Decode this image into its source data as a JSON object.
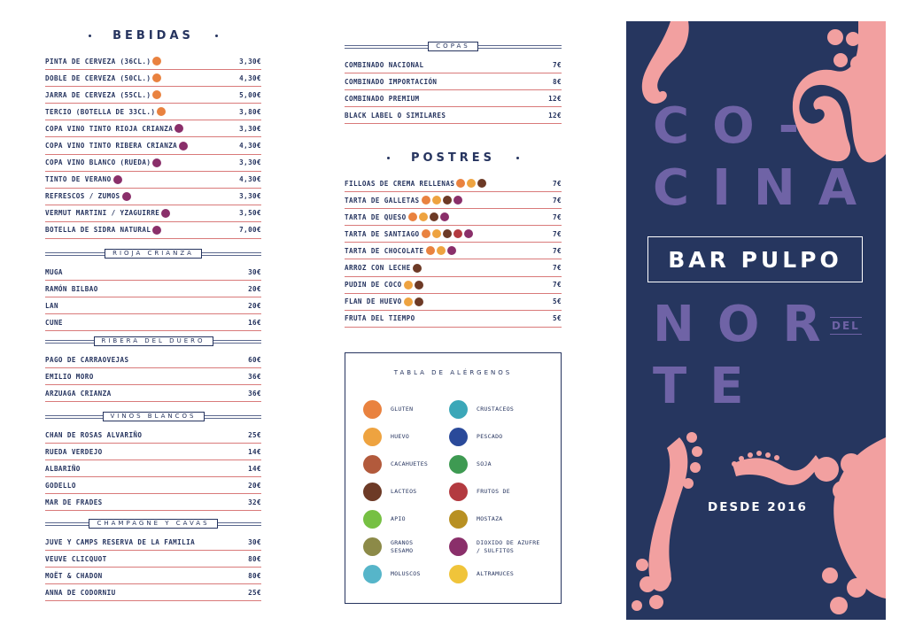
{
  "bebidas": {
    "title": "BEBIDAS",
    "items": [
      {
        "name": "PINTA DE CERVEZA (36CL.)",
        "icons": [
          "gluten"
        ],
        "price": "3,30€"
      },
      {
        "name": "DOBLE DE CERVEZA (50CL.)",
        "icons": [
          "gluten"
        ],
        "price": "4,30€"
      },
      {
        "name": "JARRA DE CERVEZA (55CL.)",
        "icons": [
          "gluten"
        ],
        "price": "5,00€"
      },
      {
        "name": "TERCIO (BOTELLA DE 33CL.)",
        "icons": [
          "gluten"
        ],
        "price": "3,80€"
      },
      {
        "name": "COPA VINO TINTO RIOJA CRIANZA",
        "icons": [
          "sulfitos"
        ],
        "price": "3,30€"
      },
      {
        "name": "COPA VINO TINTO RIBERA CRIANZA",
        "icons": [
          "sulfitos"
        ],
        "price": "4,30€"
      },
      {
        "name": "COPA VINO BLANCO (RUEDA)",
        "icons": [
          "sulfitos"
        ],
        "price": "3,30€"
      },
      {
        "name": "TINTO DE VERANO",
        "icons": [
          "sulfitos"
        ],
        "price": "4,30€"
      },
      {
        "name": "REFRESCOS / ZUMOS",
        "icons": [
          "sulfitos"
        ],
        "price": "3,30€"
      },
      {
        "name": "VERMUT MARTINI / YZAGUIRRE",
        "icons": [
          "sulfitos"
        ],
        "price": "3,50€"
      },
      {
        "name": "BOTELLA DE SIDRA NATURAL",
        "icons": [
          "sulfitos"
        ],
        "price": "7,00€"
      }
    ]
  },
  "rioja": {
    "title": "RIOJA CRIANZA",
    "items": [
      {
        "name": "MUGA",
        "icons": [],
        "price": "30€"
      },
      {
        "name": "RAMÓN BILBAO",
        "icons": [],
        "price": "20€"
      },
      {
        "name": "LAN",
        "icons": [],
        "price": "20€"
      },
      {
        "name": "CUNE",
        "icons": [],
        "price": "16€"
      }
    ]
  },
  "ribera": {
    "title": "RIBERA DEL DUERO",
    "items": [
      {
        "name": "PAGO DE CARRAOVEJAS",
        "icons": [],
        "price": "60€"
      },
      {
        "name": "EMILIO MORO",
        "icons": [],
        "price": "36€"
      },
      {
        "name": "ARZUAGA CRIANZA",
        "icons": [],
        "price": "36€"
      }
    ]
  },
  "blancos": {
    "title": "VINOS BLANCOS",
    "items": [
      {
        "name": "CHAN DE ROSAS ALVARIÑO",
        "icons": [],
        "price": "25€"
      },
      {
        "name": "RUEDA VERDEJO",
        "icons": [],
        "price": "14€"
      },
      {
        "name": "ALBARIÑO",
        "icons": [],
        "price": "14€"
      },
      {
        "name": "GODELLO",
        "icons": [],
        "price": "20€"
      },
      {
        "name": "MAR DE FRADES",
        "icons": [],
        "price": "32€"
      }
    ]
  },
  "cavas": {
    "title": "CHAMPAGNE Y CAVAS",
    "items": [
      {
        "name": "JUVE Y CAMPS RESERVA DE LA FAMILIA",
        "icons": [],
        "price": "30€"
      },
      {
        "name": "VEUVE CLICQUOT",
        "icons": [],
        "price": "80€"
      },
      {
        "name": "MOËT & CHADON",
        "icons": [],
        "price": "80€"
      },
      {
        "name": "ANNA DE CODORNIU",
        "icons": [],
        "price": "25€"
      }
    ]
  },
  "copas": {
    "title": "COPAS",
    "items": [
      {
        "name": "COMBINADO NACIONAL",
        "icons": [],
        "price": "7€"
      },
      {
        "name": "COMBINADO IMPORTACIÓN",
        "icons": [],
        "price": "8€"
      },
      {
        "name": "COMBINADO PREMIUM",
        "icons": [],
        "price": "12€"
      },
      {
        "name": "BLACK LABEL O SIMILARES",
        "icons": [],
        "price": "12€"
      }
    ]
  },
  "postres": {
    "title": "POSTRES",
    "items": [
      {
        "name": "FILLOAS DE CREMA RELLENAS",
        "icons": [
          "gluten",
          "huevo",
          "lacteos"
        ],
        "price": "7€"
      },
      {
        "name": "TARTA DE GALLETAS",
        "icons": [
          "gluten",
          "huevo",
          "lacteos",
          "sulfitos"
        ],
        "price": "7€"
      },
      {
        "name": "TARTA DE QUESO",
        "icons": [
          "gluten",
          "huevo",
          "lacteos",
          "sulfitos"
        ],
        "price": "7€"
      },
      {
        "name": "TARTA DE SANTIAGO",
        "icons": [
          "gluten",
          "huevo",
          "lacteos",
          "frutos",
          "sulfitos"
        ],
        "price": "7€"
      },
      {
        "name": "TARTA DE CHOCOLATE",
        "icons": [
          "gluten",
          "huevo",
          "sulfitos"
        ],
        "price": "7€"
      },
      {
        "name": "ARROZ CON LECHE",
        "icons": [
          "lacteos"
        ],
        "price": "7€"
      },
      {
        "name": "PUDIN DE COCO",
        "icons": [
          "huevo",
          "lacteos"
        ],
        "price": "7€"
      },
      {
        "name": "FLAN DE HUEVO",
        "icons": [
          "huevo",
          "lacteos"
        ],
        "price": "5€"
      },
      {
        "name": "FRUTA DEL TIEMPO",
        "icons": [],
        "price": "5€"
      }
    ]
  },
  "alergenos": {
    "title": "TABLA DE ALÉRGENOS",
    "items": [
      {
        "label": "GLUTEN",
        "color": "#e9823f",
        "icon": "wheat-icon"
      },
      {
        "label": "CRUSTACEOS",
        "color": "#3ba7b8",
        "icon": "crab-icon"
      },
      {
        "label": "HUEVO",
        "color": "#eea340",
        "icon": "egg-icon"
      },
      {
        "label": "PESCADO",
        "color": "#2a4a9a",
        "icon": "fish-icon"
      },
      {
        "label": "CACAHUETES",
        "color": "#b25a3c",
        "icon": "peanut-icon"
      },
      {
        "label": "SOJA",
        "color": "#3e9a52",
        "icon": "soy-icon"
      },
      {
        "label": "LACTEOS",
        "color": "#6d3a26",
        "icon": "milk-icon"
      },
      {
        "label": "FRUTOS DE",
        "color": "#b33a40",
        "icon": "nut-icon"
      },
      {
        "label": "APIO",
        "color": "#76c043",
        "icon": "celery-icon"
      },
      {
        "label": "MOSTAZA",
        "color": "#b89022",
        "icon": "mustard-icon"
      },
      {
        "label": "GRANOS\nSESAMO",
        "color": "#8c8a48",
        "icon": "sesame-icon"
      },
      {
        "label": "DIOXIDO DE AZUFRE\n/ SULFITOS",
        "color": "#8a2f6a",
        "icon": "sulfite-icon"
      },
      {
        "label": "MOLUSCOS",
        "color": "#56b5c9",
        "icon": "shell-icon"
      },
      {
        "label": "ALTRAMUCES",
        "color": "#f0c43a",
        "icon": "lupin-icon"
      }
    ]
  },
  "cover": {
    "letters": [
      "CO-",
      "CINA",
      "NOR",
      "TE"
    ],
    "bar_name": "BAR PULPO",
    "del": "DEL",
    "since": "DESDE 2016",
    "colors": {
      "background": "#26365f",
      "tentacle": "#f2a0a0",
      "letters": "#6f63a6"
    }
  }
}
